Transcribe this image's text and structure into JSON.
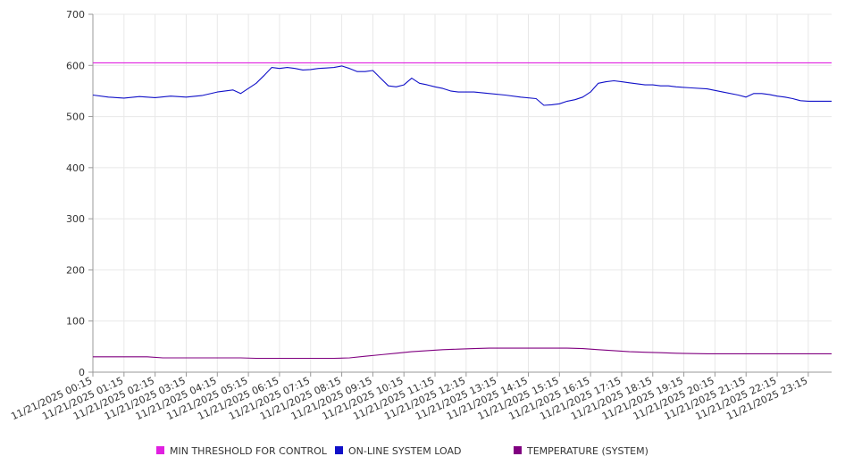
{
  "chart_data": {
    "type": "line",
    "title": "",
    "xlabel": "",
    "ylabel": "",
    "ylim": [
      0,
      700
    ],
    "yticks": [
      "0",
      "100",
      "200",
      "300",
      "400",
      "500",
      "600",
      "700"
    ],
    "grid": true,
    "legend_position": "bottom",
    "x_tick_labels": [
      "11/21/2025 00:15",
      "11/21/2025 01:15",
      "11/21/2025 02:15",
      "11/21/2025 03:15",
      "11/21/2025 04:15",
      "11/21/2025 05:15",
      "11/21/2025 06:15",
      "11/21/2025 07:15",
      "11/21/2025 08:15",
      "11/21/2025 09:15",
      "11/21/2025 10:15",
      "11/21/2025 11:15",
      "11/21/2025 12:15",
      "11/21/2025 13:15",
      "11/21/2025 14:15",
      "11/21/2025 15:15",
      "11/21/2025 16:15",
      "11/21/2025 17:15",
      "11/21/2025 18:15",
      "11/21/2025 19:15",
      "11/21/2025 20:15",
      "11/21/2025 21:15",
      "11/21/2025 22:15",
      "11/21/2025 23:15"
    ],
    "x_hours": [
      0.25,
      24.0
    ],
    "series": [
      {
        "name": "MIN THRESHOLD FOR CONTROL",
        "color": "#e020e0",
        "x": [
          0.25,
          24.0
        ],
        "y": [
          605,
          605
        ]
      },
      {
        "name": "ON-LINE SYSTEM LOAD",
        "color": "#1010c8",
        "x": [
          0.25,
          0.75,
          1.25,
          1.75,
          2.25,
          2.75,
          3.25,
          3.75,
          4.25,
          4.75,
          5.0,
          5.25,
          5.5,
          5.75,
          6.0,
          6.25,
          6.5,
          6.75,
          7.0,
          7.25,
          7.5,
          7.75,
          8.0,
          8.25,
          8.5,
          8.75,
          9.0,
          9.25,
          9.5,
          9.75,
          10.0,
          10.25,
          10.5,
          10.75,
          11.0,
          11.25,
          11.5,
          11.75,
          12.0,
          12.5,
          13.0,
          13.5,
          14.0,
          14.5,
          14.75,
          15.0,
          15.25,
          15.5,
          15.75,
          16.0,
          16.25,
          16.5,
          16.75,
          17.0,
          17.25,
          17.5,
          17.75,
          18.0,
          18.25,
          18.5,
          18.75,
          19.0,
          19.5,
          20.0,
          20.5,
          21.0,
          21.25,
          21.5,
          21.75,
          22.0,
          22.25,
          22.5,
          22.75,
          23.0,
          23.25,
          23.5,
          23.75,
          24.0
        ],
        "y": [
          542,
          538,
          536,
          539,
          537,
          540,
          538,
          541,
          548,
          552,
          545,
          555,
          565,
          580,
          596,
          594,
          596,
          594,
          591,
          592,
          594,
          595,
          596,
          599,
          594,
          588,
          588,
          590,
          575,
          560,
          558,
          562,
          575,
          565,
          562,
          558,
          555,
          550,
          548,
          548,
          545,
          542,
          538,
          535,
          522,
          523,
          525,
          530,
          533,
          538,
          548,
          565,
          568,
          570,
          568,
          566,
          564,
          562,
          562,
          560,
          560,
          558,
          556,
          554,
          548,
          542,
          538,
          545,
          545,
          543,
          540,
          538,
          535,
          531,
          530,
          530,
          530,
          530
        ]
      },
      {
        "name": "TEMPERATURE (SYSTEM)",
        "color": "#800080",
        "x": [
          0.25,
          1.0,
          2.0,
          2.5,
          3.0,
          4.0,
          5.0,
          5.5,
          6.0,
          7.0,
          8.0,
          8.5,
          9.0,
          9.5,
          10.0,
          10.5,
          11.0,
          11.5,
          12.0,
          12.5,
          13.0,
          14.0,
          15.0,
          15.5,
          16.0,
          16.5,
          17.0,
          17.5,
          18.0,
          18.5,
          19.0,
          20.0,
          21.0,
          22.0,
          23.0,
          24.0
        ],
        "y": [
          30,
          30,
          30,
          28,
          28,
          28,
          28,
          27,
          27,
          27,
          27,
          28,
          31,
          34,
          37,
          40,
          42,
          44,
          45,
          46,
          47,
          47,
          47,
          47,
          46,
          44,
          42,
          40,
          39,
          38,
          37,
          36,
          36,
          36,
          36,
          36
        ]
      }
    ],
    "legend": [
      {
        "label": "MIN THRESHOLD FOR CONTROL",
        "color": "#e020e0"
      },
      {
        "label": "ON-LINE SYSTEM LOAD",
        "color": "#1010c8"
      },
      {
        "label": "TEMPERATURE (SYSTEM)",
        "color": "#800080"
      }
    ],
    "colors": {
      "grid": "#e8e8e8",
      "axis": "#999999"
    }
  }
}
